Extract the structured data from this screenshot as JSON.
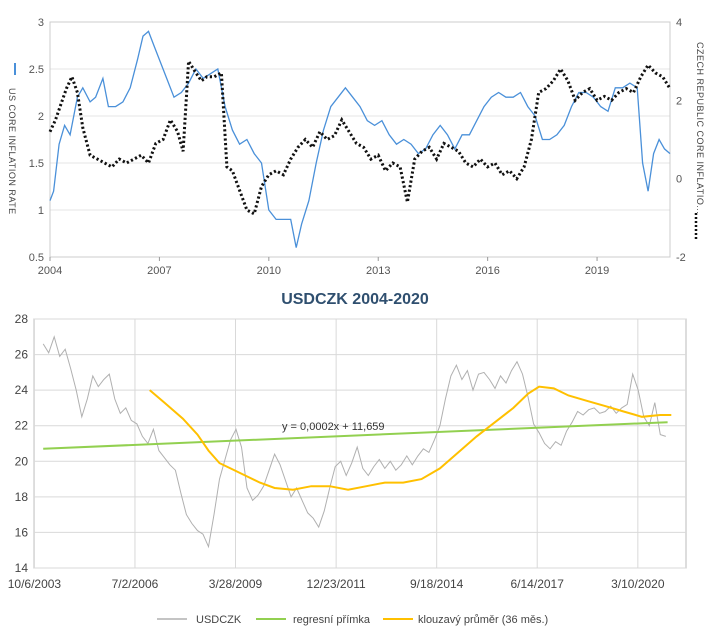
{
  "chart_data": [
    {
      "type": "line",
      "title": "",
      "xlabel": "",
      "x_ticks": [
        "2004",
        "2007",
        "2010",
        "2013",
        "2016",
        "2019"
      ],
      "xlim": [
        2004.0,
        2021.0
      ],
      "ylim_left": [
        0.5,
        3
      ],
      "ylim_right": [
        -2,
        4
      ],
      "y_ticks_left": [
        "0.5",
        "1",
        "1.5",
        "2",
        "2.5",
        "3"
      ],
      "y_ticks_right": [
        "-2",
        "0",
        "2",
        "4"
      ],
      "ylabel_left": "US CORE INFLATION RATE",
      "ylabel_right": "CZECH REPUBLIC CORE INFLATIO...",
      "colors": {
        "left": "#4a90d9",
        "right": "#111111"
      },
      "series": [
        {
          "name": "US CORE INFLATION RATE",
          "axis": "left",
          "style": "solid",
          "x": [
            2004.0,
            2004.1,
            2004.25,
            2004.4,
            2004.55,
            2004.75,
            2004.9,
            2005.1,
            2005.25,
            2005.45,
            2005.6,
            2005.8,
            2006.0,
            2006.2,
            2006.4,
            2006.55,
            2006.7,
            2006.85,
            2007.0,
            2007.2,
            2007.4,
            2007.6,
            2007.8,
            2008.0,
            2008.2,
            2008.4,
            2008.6,
            2008.8,
            2009.0,
            2009.2,
            2009.4,
            2009.6,
            2009.8,
            2010.0,
            2010.2,
            2010.4,
            2010.6,
            2010.75,
            2010.9,
            2011.1,
            2011.3,
            2011.5,
            2011.7,
            2011.9,
            2012.1,
            2012.3,
            2012.5,
            2012.7,
            2012.9,
            2013.1,
            2013.3,
            2013.5,
            2013.7,
            2013.9,
            2014.1,
            2014.3,
            2014.5,
            2014.7,
            2014.9,
            2015.1,
            2015.3,
            2015.5,
            2015.7,
            2015.9,
            2016.1,
            2016.3,
            2016.5,
            2016.7,
            2016.9,
            2017.1,
            2017.3,
            2017.5,
            2017.7,
            2017.9,
            2018.1,
            2018.3,
            2018.5,
            2018.7,
            2018.9,
            2019.1,
            2019.3,
            2019.5,
            2019.7,
            2019.9,
            2020.1,
            2020.25,
            2020.4,
            2020.55,
            2020.7,
            2020.85,
            2021.0
          ],
          "y": [
            1.1,
            1.2,
            1.7,
            1.9,
            1.8,
            2.2,
            2.3,
            2.15,
            2.2,
            2.4,
            2.1,
            2.1,
            2.15,
            2.3,
            2.6,
            2.85,
            2.9,
            2.75,
            2.6,
            2.4,
            2.2,
            2.25,
            2.35,
            2.5,
            2.4,
            2.45,
            2.5,
            2.1,
            1.85,
            1.7,
            1.75,
            1.6,
            1.5,
            1.0,
            0.9,
            0.9,
            0.9,
            0.6,
            0.85,
            1.1,
            1.5,
            1.85,
            2.1,
            2.2,
            2.3,
            2.2,
            2.1,
            1.95,
            1.9,
            1.95,
            1.8,
            1.7,
            1.75,
            1.7,
            1.6,
            1.65,
            1.8,
            1.9,
            1.8,
            1.65,
            1.8,
            1.8,
            1.95,
            2.1,
            2.2,
            2.25,
            2.2,
            2.2,
            2.25,
            2.1,
            2.0,
            1.75,
            1.75,
            1.8,
            1.9,
            2.1,
            2.25,
            2.25,
            2.2,
            2.1,
            2.05,
            2.3,
            2.3,
            2.35,
            2.3,
            1.5,
            1.2,
            1.6,
            1.75,
            1.65,
            1.6
          ]
        },
        {
          "name": "CZECH REPUBLIC CORE INFLATION RATE",
          "axis": "right",
          "style": "dotted",
          "x": [
            2004.0,
            2004.15,
            2004.3,
            2004.45,
            2004.6,
            2004.75,
            2004.9,
            2005.1,
            2005.3,
            2005.5,
            2005.7,
            2005.9,
            2006.1,
            2006.3,
            2006.5,
            2006.7,
            2006.9,
            2007.1,
            2007.3,
            2007.5,
            2007.65,
            2007.8,
            2008.0,
            2008.15,
            2008.3,
            2008.5,
            2008.7,
            2008.85,
            2009.0,
            2009.2,
            2009.4,
            2009.6,
            2009.8,
            2010.0,
            2010.2,
            2010.4,
            2010.6,
            2010.8,
            2011.0,
            2011.2,
            2011.4,
            2011.6,
            2011.8,
            2012.0,
            2012.2,
            2012.4,
            2012.6,
            2012.8,
            2013.0,
            2013.2,
            2013.4,
            2013.6,
            2013.8,
            2014.0,
            2014.2,
            2014.4,
            2014.6,
            2014.8,
            2015.0,
            2015.2,
            2015.4,
            2015.6,
            2015.8,
            2016.0,
            2016.2,
            2016.4,
            2016.6,
            2016.8,
            2017.0,
            2017.2,
            2017.4,
            2017.6,
            2017.8,
            2018.0,
            2018.2,
            2018.4,
            2018.6,
            2018.8,
            2019.0,
            2019.2,
            2019.4,
            2019.6,
            2019.8,
            2020.0,
            2020.2,
            2020.4,
            2020.6,
            2020.8,
            2021.0
          ],
          "y": [
            1.2,
            1.5,
            1.9,
            2.3,
            2.6,
            2.2,
            1.3,
            0.6,
            0.5,
            0.4,
            0.3,
            0.5,
            0.4,
            0.5,
            0.6,
            0.4,
            0.9,
            1.0,
            1.5,
            1.2,
            0.7,
            3.0,
            2.7,
            2.5,
            2.6,
            2.6,
            2.7,
            0.3,
            0.2,
            -0.3,
            -0.8,
            -0.9,
            -0.2,
            0.1,
            0.2,
            0.1,
            0.5,
            0.8,
            1.0,
            0.8,
            1.2,
            1.0,
            1.1,
            1.5,
            1.2,
            0.9,
            0.8,
            0.5,
            0.6,
            0.2,
            0.4,
            0.3,
            -0.6,
            0.5,
            0.7,
            0.8,
            0.5,
            0.9,
            0.8,
            0.7,
            0.4,
            0.3,
            0.5,
            0.3,
            0.4,
            0.1,
            0.2,
            0.0,
            0.3,
            1.0,
            2.2,
            2.3,
            2.5,
            2.8,
            2.5,
            2.0,
            2.2,
            2.3,
            2.0,
            2.1,
            2.0,
            2.2,
            2.3,
            2.2,
            2.6,
            2.9,
            2.7,
            2.6,
            2.3
          ]
        }
      ]
    },
    {
      "type": "line",
      "title": "USDCZK 2004-2020",
      "xlabel": "",
      "ylabel": "",
      "x_ticks": [
        "10/6/2003",
        "7/2/2006",
        "3/28/2009",
        "12/23/2011",
        "9/18/2014",
        "6/14/2017",
        "3/10/2020"
      ],
      "xlim": [
        2003.75,
        2021.5
      ],
      "ylim": [
        14,
        28
      ],
      "y_ticks": [
        "14",
        "16",
        "18",
        "20",
        "22",
        "24",
        "26",
        "28"
      ],
      "legend_position": "bottom",
      "annotation": "y = 0,0002x + 11,659",
      "series": [
        {
          "name": "USDCZK",
          "color": "#b0b0b0",
          "x": [
            2004.0,
            2004.15,
            2004.3,
            2004.45,
            2004.6,
            2004.75,
            2004.9,
            2005.05,
            2005.2,
            2005.35,
            2005.5,
            2005.65,
            2005.8,
            2005.95,
            2006.1,
            2006.25,
            2006.4,
            2006.55,
            2006.7,
            2006.85,
            2007.0,
            2007.15,
            2007.3,
            2007.45,
            2007.6,
            2007.75,
            2007.9,
            2008.05,
            2008.2,
            2008.35,
            2008.5,
            2008.65,
            2008.8,
            2008.95,
            2009.1,
            2009.25,
            2009.4,
            2009.55,
            2009.7,
            2009.85,
            2010.0,
            2010.15,
            2010.3,
            2010.45,
            2010.6,
            2010.75,
            2010.9,
            2011.05,
            2011.2,
            2011.35,
            2011.5,
            2011.65,
            2011.8,
            2011.95,
            2012.1,
            2012.25,
            2012.4,
            2012.55,
            2012.7,
            2012.85,
            2013.0,
            2013.15,
            2013.3,
            2013.45,
            2013.6,
            2013.75,
            2013.9,
            2014.05,
            2014.2,
            2014.35,
            2014.5,
            2014.65,
            2014.8,
            2014.95,
            2015.1,
            2015.25,
            2015.4,
            2015.55,
            2015.7,
            2015.85,
            2016.0,
            2016.15,
            2016.3,
            2016.45,
            2016.6,
            2016.75,
            2016.9,
            2017.05,
            2017.2,
            2017.35,
            2017.5,
            2017.65,
            2017.8,
            2017.95,
            2018.1,
            2018.25,
            2018.4,
            2018.55,
            2018.7,
            2018.85,
            2019.0,
            2019.15,
            2019.3,
            2019.45,
            2019.6,
            2019.75,
            2019.9,
            2020.05,
            2020.2,
            2020.35,
            2020.5,
            2020.65,
            2020.8,
            2020.95
          ],
          "y": [
            26.6,
            26.1,
            27.0,
            25.9,
            26.3,
            25.2,
            24.0,
            22.5,
            23.5,
            24.8,
            24.2,
            24.6,
            24.9,
            23.5,
            22.7,
            23.0,
            22.3,
            22.1,
            21.4,
            21.0,
            21.8,
            20.6,
            20.2,
            19.8,
            19.5,
            18.2,
            17.0,
            16.5,
            16.1,
            15.9,
            15.2,
            17.0,
            19.0,
            20.1,
            21.2,
            21.8,
            20.8,
            18.5,
            17.8,
            18.1,
            18.6,
            19.5,
            20.4,
            19.8,
            18.9,
            18.0,
            18.5,
            17.8,
            17.1,
            16.8,
            16.3,
            17.2,
            18.5,
            19.7,
            20.0,
            19.2,
            19.9,
            20.8,
            19.6,
            19.2,
            19.7,
            20.1,
            19.6,
            20.0,
            19.5,
            19.8,
            20.3,
            19.8,
            20.3,
            20.7,
            20.5,
            21.2,
            22.0,
            23.5,
            24.8,
            25.4,
            24.6,
            25.1,
            24.0,
            24.9,
            25.0,
            24.6,
            24.1,
            24.8,
            24.4,
            25.1,
            25.6,
            24.9,
            23.6,
            22.1,
            21.6,
            21.0,
            20.7,
            21.1,
            20.9,
            21.7,
            22.2,
            22.8,
            22.6,
            22.9,
            23.0,
            22.7,
            22.8,
            23.1,
            22.7,
            23.0,
            23.2,
            24.9,
            24.0,
            22.5,
            22.0,
            23.3,
            21.5,
            21.4
          ]
        },
        {
          "name": "regresní přímka",
          "color": "#92d050",
          "x": [
            2004.0,
            2021.0
          ],
          "y": [
            20.7,
            22.2
          ]
        },
        {
          "name": "klouzavý průměr (36 měs.)",
          "color": "#ffc000",
          "x": [
            2006.9,
            2007.3,
            2007.8,
            2008.2,
            2008.5,
            2008.8,
            2009.1,
            2009.5,
            2009.9,
            2010.3,
            2010.8,
            2011.3,
            2011.8,
            2012.3,
            2012.8,
            2013.3,
            2013.8,
            2014.3,
            2014.8,
            2015.3,
            2015.8,
            2016.3,
            2016.8,
            2017.2,
            2017.5,
            2017.9,
            2018.3,
            2018.8,
            2019.3,
            2019.8,
            2020.3,
            2020.8,
            2021.1
          ],
          "y": [
            24.0,
            23.3,
            22.4,
            21.5,
            20.6,
            19.9,
            19.6,
            19.2,
            18.8,
            18.5,
            18.4,
            18.6,
            18.6,
            18.4,
            18.6,
            18.8,
            18.8,
            19.0,
            19.6,
            20.5,
            21.4,
            22.2,
            23.0,
            23.8,
            24.2,
            24.1,
            23.7,
            23.4,
            23.1,
            22.8,
            22.5,
            22.6,
            22.6
          ]
        }
      ]
    }
  ]
}
